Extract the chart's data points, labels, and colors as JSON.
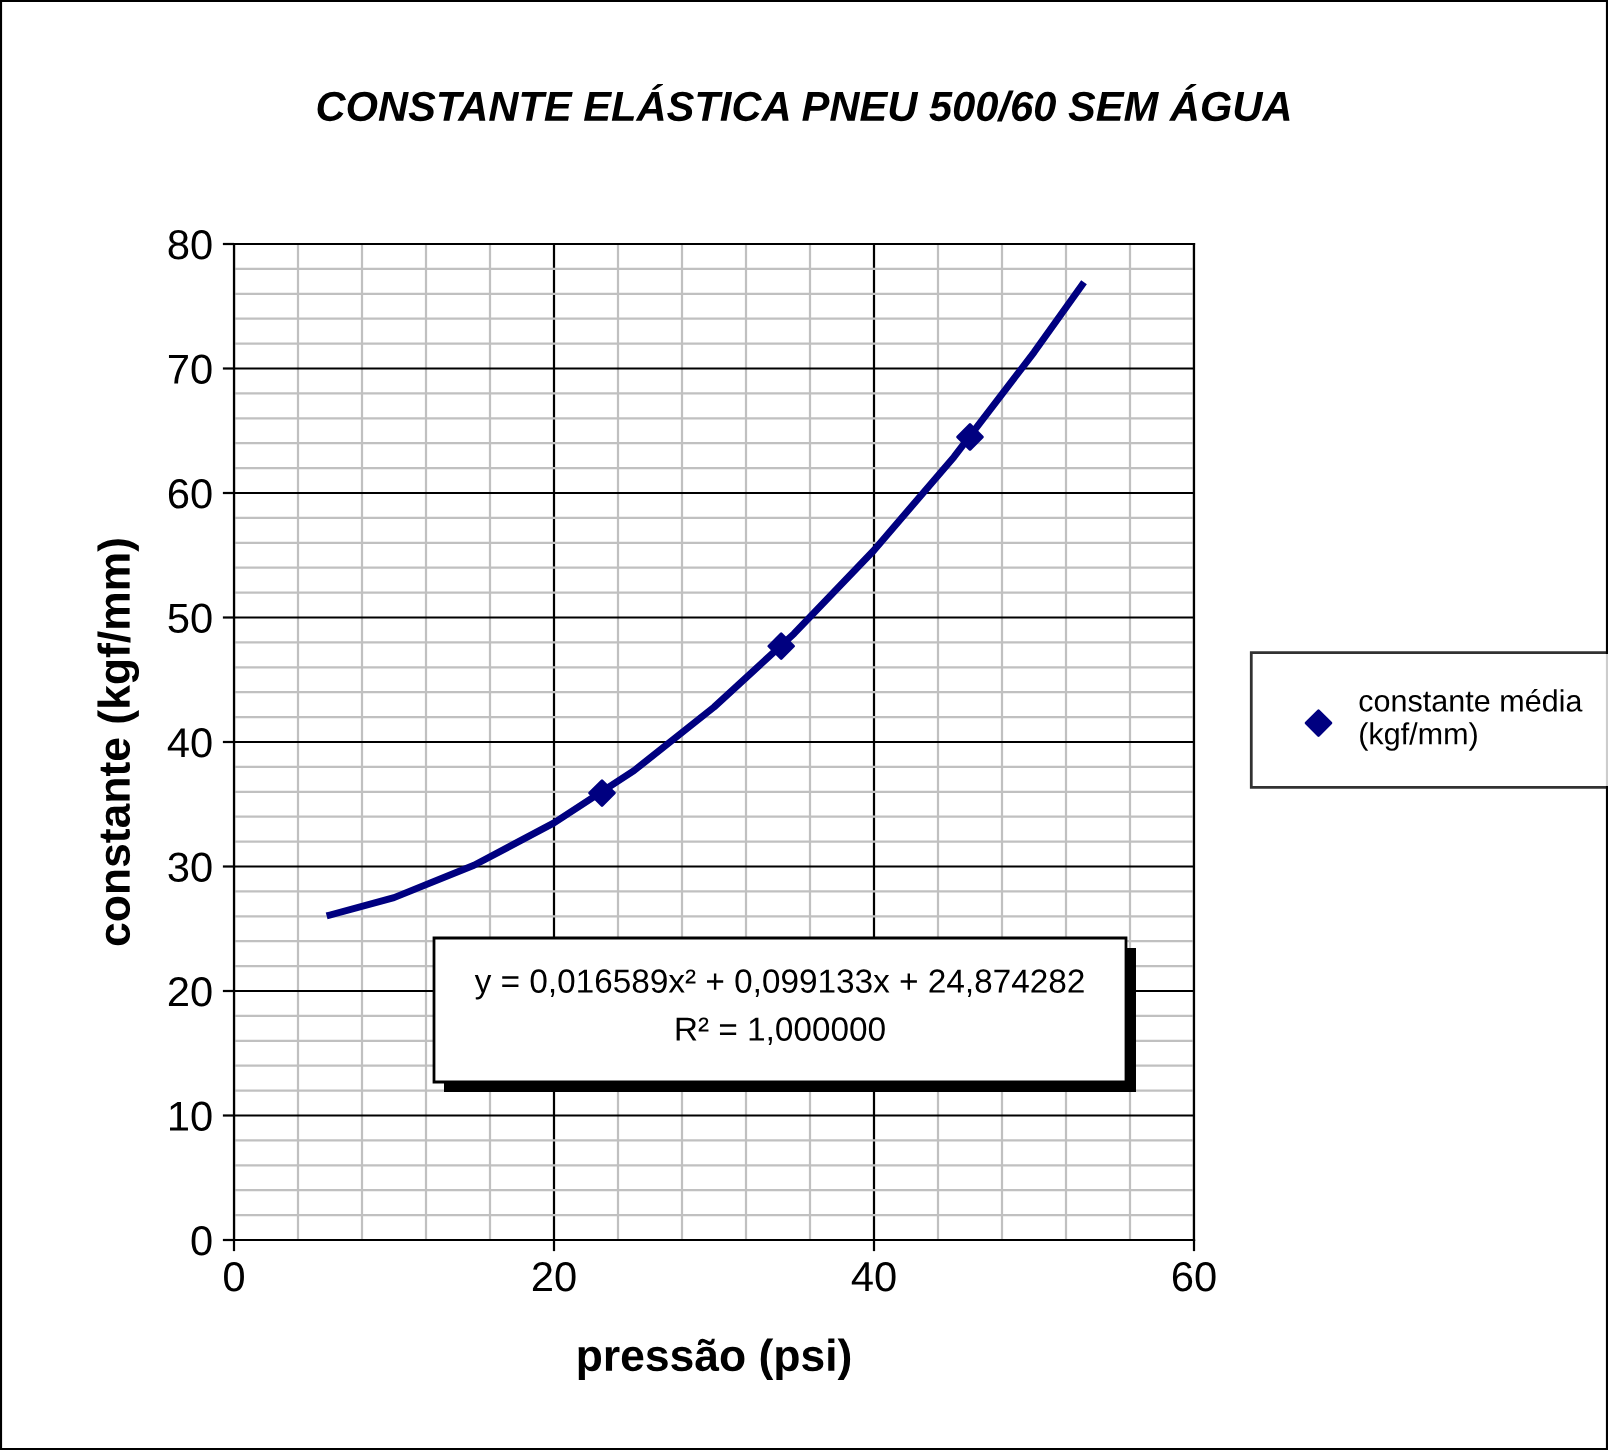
{
  "chart_data": {
    "type": "scatter",
    "title": "CONSTANTE ELÁSTICA PNEU 500/60 SEM ÁGUA",
    "xlabel": "pressão (psi)",
    "ylabel": "constante (kgf/mm)",
    "xlim": [
      0,
      60
    ],
    "xticks": [
      0,
      20,
      40,
      60
    ],
    "ylim": [
      0,
      80
    ],
    "yticks": [
      0,
      10,
      20,
      30,
      40,
      50,
      60,
      70,
      80
    ],
    "grid": true,
    "legend": "right",
    "marker": "diamond",
    "series": [
      {
        "name": "constante média (kgf/mm)",
        "color": "#000080",
        "x": [
          23,
          34.2,
          46
        ],
        "values": [
          35.9,
          47.7,
          64.5
        ]
      },
      {
        "type": "line",
        "color": "#000080",
        "line_style": "solid",
        "marker": "none",
        "x": [
          6,
          10,
          15,
          20,
          25,
          30,
          35,
          40,
          45,
          50,
          53
        ],
        "values": [
          26.1,
          27.5,
          30.1,
          33.5,
          37.7,
          42.8,
          48.7,
          55.4,
          62.9,
          71.3,
          76.7
        ]
      }
    ],
    "annotations": [
      "y = 0,016589x² + 0,099133x + 24,874282",
      "R² = 1,000000"
    ]
  }
}
